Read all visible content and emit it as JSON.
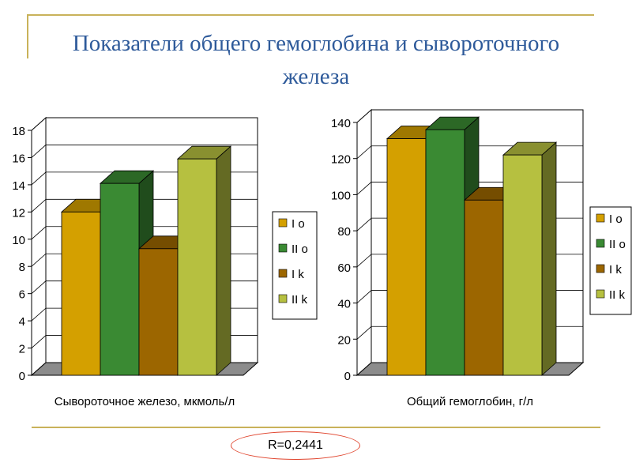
{
  "slide": {
    "title_line1": "Показатели общего гемоглобина и сывороточного",
    "title_line2": "железа",
    "note": "R=0,2441"
  },
  "chart_data": [
    {
      "type": "bar",
      "categories": [
        ""
      ],
      "series": [
        {
          "name": "I o",
          "values": [
            12
          ],
          "color": "#d4a000"
        },
        {
          "name": "II o",
          "values": [
            14.1
          ],
          "color": "#3a8a33"
        },
        {
          "name": "I k",
          "values": [
            9.3
          ],
          "color": "#9c6600"
        },
        {
          "name": "II k",
          "values": [
            15.9
          ],
          "color": "#b6c040"
        }
      ],
      "xlabel": "Сывороточное железо, мкмоль/л",
      "ylabel": "",
      "ylim": [
        0,
        18
      ],
      "yticks": [
        0,
        2,
        4,
        6,
        8,
        10,
        12,
        14,
        16,
        18
      ],
      "grid": true,
      "legend": "right",
      "style": "3d"
    },
    {
      "type": "bar",
      "categories": [
        ""
      ],
      "series": [
        {
          "name": "I o",
          "values": [
            131
          ],
          "color": "#d4a000"
        },
        {
          "name": "II o",
          "values": [
            136
          ],
          "color": "#3a8a33"
        },
        {
          "name": "I k",
          "values": [
            97
          ],
          "color": "#9c6600"
        },
        {
          "name": "II k",
          "values": [
            122
          ],
          "color": "#b6c040"
        }
      ],
      "xlabel": "Общий гемоглобин, г/л",
      "ylabel": "",
      "ylim": [
        0,
        140
      ],
      "yticks": [
        0,
        20,
        40,
        60,
        80,
        100,
        120,
        140
      ],
      "grid": true,
      "legend": "right",
      "style": "3d"
    }
  ]
}
